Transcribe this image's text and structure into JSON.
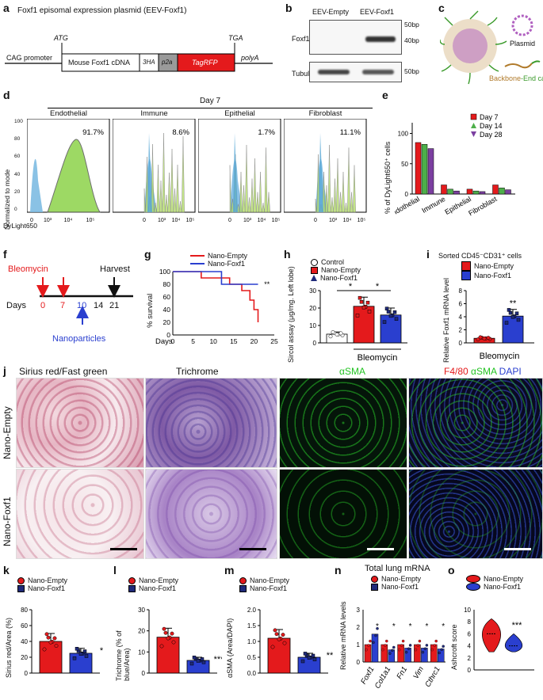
{
  "panel_labels": {
    "a": "a",
    "b": "b",
    "c": "c",
    "d": "d",
    "e": "e",
    "f": "f",
    "g": "g",
    "h": "h",
    "i": "i",
    "j": "j",
    "k": "k",
    "l": "l",
    "m": "m",
    "n": "n",
    "o": "o"
  },
  "a": {
    "title": "Foxf1 episomal expression plasmid (EEV-Foxf1)",
    "atg": "ATG",
    "tga": "TGA",
    "segments": [
      "CAG promoter",
      "Mouse Foxf1 cDNA",
      "3HA",
      "p2a",
      "TagRFP",
      "polyA"
    ],
    "colors": {
      "p2a": "#9a9a9a",
      "tagrfp": "#e41a1c"
    }
  },
  "b": {
    "lanes": [
      "EEV-Empty",
      "EEV-Foxf1"
    ],
    "rows": [
      "Foxf1",
      "Tubulin"
    ],
    "markers": [
      "50bp",
      "40bp",
      "50bp"
    ]
  },
  "c": {
    "plasmid_label": "Plasmid",
    "backbone": "Backbone",
    "endcap": "-End cap",
    "colors": {
      "backbone": "#b07a2a",
      "endcap": "#3a9a2a",
      "plasmid": "#b060c0"
    }
  },
  "d": {
    "header": "Day 7",
    "ylabel": "Normalized to mode",
    "xlabel": "DyLight650",
    "panels": [
      {
        "name": "Endothelial",
        "pct": "91.7%"
      },
      {
        "name": "Immune",
        "pct": "8.6%"
      },
      {
        "name": "Epithelial",
        "pct": "1.7%"
      },
      {
        "name": "Fibroblast",
        "pct": "11.1%"
      }
    ],
    "yticks": [
      "100",
      "80",
      "60",
      "40",
      "20",
      "0"
    ],
    "xticks": [
      "0",
      "10³",
      "10⁴",
      "10⁵"
    ]
  },
  "e": {
    "ylabel": "% of DyLight650⁺ cells",
    "yticks": [
      "0",
      "50",
      "100"
    ],
    "legend": [
      "Day 7",
      "Day 14",
      "Day 28"
    ],
    "colors": [
      "#e41a1c",
      "#4daf4a",
      "#7b3fa0"
    ],
    "chart_data": {
      "type": "bar",
      "categories": [
        "Endothelial",
        "Immune",
        "Epithelial",
        "Fibroblast"
      ],
      "series": [
        {
          "name": "Day 7",
          "values": [
            85,
            15,
            8,
            15
          ]
        },
        {
          "name": "Day 14",
          "values": [
            82,
            8,
            5,
            10
          ]
        },
        {
          "name": "Day 28",
          "values": [
            75,
            5,
            4,
            7
          ]
        }
      ],
      "ylim": [
        0,
        100
      ]
    }
  },
  "f": {
    "bleomycin": "Bleomycin",
    "harvest": "Harvest",
    "days": "Days",
    "ticks": [
      "0",
      "7",
      "10",
      "14",
      "21"
    ],
    "nanoparticles": "Nanoparticles"
  },
  "g": {
    "legend": [
      "Nano-Empty",
      "Nano-Foxf1"
    ],
    "ylabel": "% survival",
    "xlabel": "Days",
    "yticks": [
      "0",
      "20",
      "40",
      "60",
      "80",
      "100"
    ],
    "xticks": [
      "0",
      "5",
      "10",
      "15",
      "20",
      "25"
    ],
    "sig": "**",
    "colors": [
      "#e41a1c",
      "#2a3fcf"
    ],
    "chart_data": {
      "type": "line",
      "series": [
        {
          "name": "Nano-Empty",
          "x": [
            0,
            7,
            7,
            14,
            14,
            17,
            17,
            19,
            19,
            20,
            20,
            21,
            21
          ],
          "y": [
            100,
            100,
            90,
            90,
            80,
            80,
            70,
            70,
            55,
            55,
            40,
            40,
            20
          ]
        },
        {
          "name": "Nano-Foxf1",
          "x": [
            0,
            12,
            12,
            21
          ],
          "y": [
            100,
            100,
            80,
            80
          ]
        }
      ],
      "xlim": [
        0,
        25
      ],
      "ylim": [
        0,
        100
      ]
    }
  },
  "h": {
    "legend": [
      "Control",
      "Nano-Empty",
      "Nano-Foxf1"
    ],
    "ylabel": "Sircol assay (μg/mg. Left lobe)",
    "yticks": [
      "0",
      "10",
      "20",
      "30"
    ],
    "xlabel": "Bleomycin",
    "sig": [
      "*",
      "*"
    ],
    "chart_data": {
      "type": "bar",
      "categories": [
        "Control",
        "Nano-Empty",
        "Nano-Foxf1"
      ],
      "values": [
        5,
        21,
        16
      ],
      "ylim": [
        0,
        30
      ]
    }
  },
  "i": {
    "title": "Sorted CD45⁻CD31⁺ cells",
    "legend": [
      "Nano-Empty",
      "Nano-Foxf1"
    ],
    "ylabel": "Relative Foxf1 mRNA level",
    "yticks": [
      "0",
      "2",
      "4",
      "6",
      "8"
    ],
    "xlabel": "Bleomycin",
    "sig": "**",
    "chart_data": {
      "type": "bar",
      "categories": [
        "Nano-Empty",
        "Nano-Foxf1"
      ],
      "values": [
        0.7,
        4.1
      ],
      "ylim": [
        0,
        8
      ]
    }
  },
  "j": {
    "columns": [
      "Sirius red/Fast green",
      "Trichrome",
      "αSMA"
    ],
    "merge": {
      "a": "F4/80 ",
      "b": "αSMA ",
      "c": "DAPI"
    },
    "rows": [
      "Nano-Empty",
      "Nano-Foxf1"
    ]
  },
  "k": {
    "legend": [
      "Nano-Empty",
      "Nano-Foxf1"
    ],
    "ylabel": "Sirius red/Area (%)",
    "yticks": [
      "0",
      "20",
      "40",
      "60",
      "80"
    ],
    "sig": "*",
    "chart_data": {
      "type": "bar",
      "categories": [
        "Nano-Empty",
        "Nano-Foxf1"
      ],
      "values": [
        40,
        25
      ],
      "ylim": [
        0,
        80
      ]
    }
  },
  "l": {
    "legend": [
      "Nano-Empty",
      "Nano-Foxf1"
    ],
    "ylabel": "Trichrome (% of blue/Area)",
    "yticks": [
      "0",
      "10",
      "20",
      "30"
    ],
    "sig": "***",
    "chart_data": {
      "type": "bar",
      "categories": [
        "Nano-Empty",
        "Nano-Foxf1"
      ],
      "values": [
        17,
        6
      ],
      "ylim": [
        0,
        30
      ]
    }
  },
  "m": {
    "legend": [
      "Nano-Empty",
      "Nano-Foxf1"
    ],
    "ylabel": "αSMA (Area/DAPI)",
    "yticks": [
      "0.0",
      "0.5",
      "1.0",
      "1.5",
      "2.0"
    ],
    "sig": "**",
    "chart_data": {
      "type": "bar",
      "categories": [
        "Nano-Empty",
        "Nano-Foxf1"
      ],
      "values": [
        1.1,
        0.5
      ],
      "ylim": [
        0,
        2
      ]
    }
  },
  "n": {
    "title": "Total lung mRNA",
    "legend": [
      "Nano-Empty",
      "Nano-Foxf1"
    ],
    "ylabel": "Relative mRNA levels",
    "yticks": [
      "0",
      "1",
      "2",
      "3"
    ],
    "genes": [
      "Foxf1",
      "Col1a1",
      "Fn1",
      "Vim",
      "Cthrc1"
    ],
    "sig": [
      "*",
      "*",
      "*",
      "*",
      "*"
    ],
    "chart_data": {
      "type": "bar",
      "categories": [
        "Foxf1",
        "Col1a1",
        "Fn1",
        "Vim",
        "Cthrc1"
      ],
      "series": [
        {
          "name": "Nano-Empty",
          "values": [
            1.0,
            1.0,
            1.0,
            1.0,
            1.0
          ]
        },
        {
          "name": "Nano-Foxf1",
          "values": [
            1.6,
            0.7,
            0.8,
            0.8,
            0.75
          ]
        }
      ],
      "ylim": [
        0,
        3
      ]
    }
  },
  "o": {
    "legend": [
      "Nano-Empty",
      "Nano-Foxf1"
    ],
    "ylabel": "Ashcroft score",
    "yticks": [
      "0",
      "2",
      "4",
      "6",
      "8",
      "10"
    ],
    "sig": "***",
    "chart_data": {
      "type": "violin",
      "categories": [
        "Nano-Empty",
        "Nano-Foxf1"
      ],
      "medians": [
        6,
        4
      ],
      "ylim": [
        0,
        10
      ]
    }
  },
  "colors": {
    "red": "#e41a1c",
    "blue": "#2a3fcf",
    "navy": "#1f2a7a"
  }
}
